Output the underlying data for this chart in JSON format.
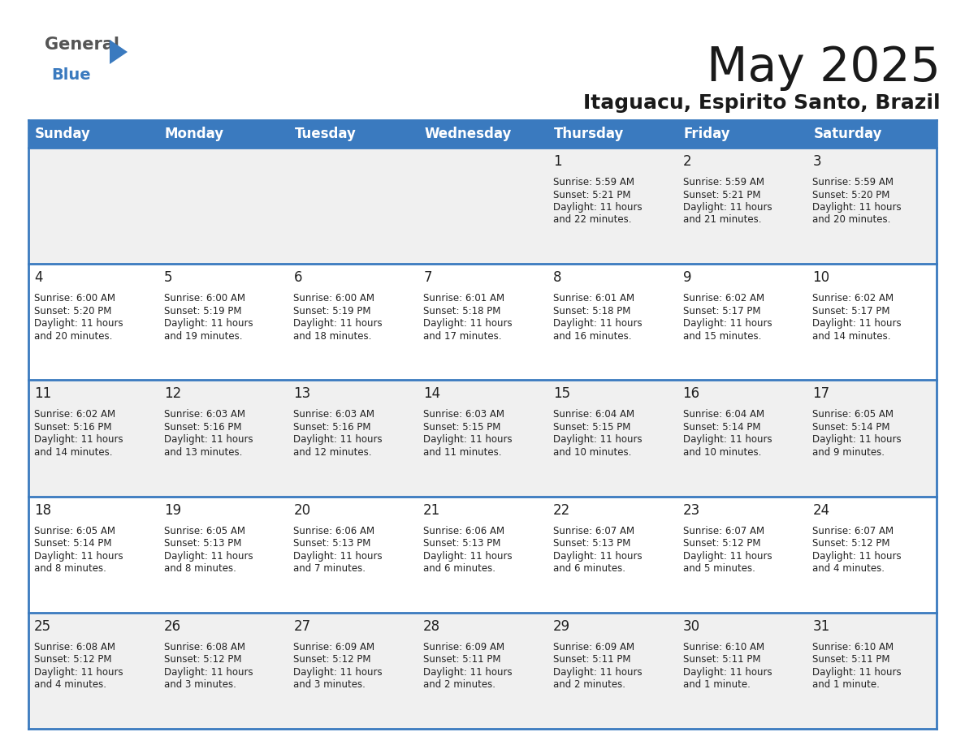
{
  "title": "May 2025",
  "subtitle": "Itaguacu, Espirito Santo, Brazil",
  "header_bg_color": "#3a7abf",
  "header_text_color": "#ffffff",
  "days_of_week": [
    "Sunday",
    "Monday",
    "Tuesday",
    "Wednesday",
    "Thursday",
    "Friday",
    "Saturday"
  ],
  "row_bg_colors": [
    "#f0f0f0",
    "#ffffff"
  ],
  "text_color": "#222222",
  "day_num_color": "#222222",
  "grid_line_color": "#3a7abf",
  "calendar_data": [
    [
      {
        "day": "",
        "sunrise": "",
        "sunset": "",
        "daylight": ""
      },
      {
        "day": "",
        "sunrise": "",
        "sunset": "",
        "daylight": ""
      },
      {
        "day": "",
        "sunrise": "",
        "sunset": "",
        "daylight": ""
      },
      {
        "day": "",
        "sunrise": "",
        "sunset": "",
        "daylight": ""
      },
      {
        "day": "1",
        "sunrise": "5:59 AM",
        "sunset": "5:21 PM",
        "daylight": "11 hours and 22 minutes."
      },
      {
        "day": "2",
        "sunrise": "5:59 AM",
        "sunset": "5:21 PM",
        "daylight": "11 hours and 21 minutes."
      },
      {
        "day": "3",
        "sunrise": "5:59 AM",
        "sunset": "5:20 PM",
        "daylight": "11 hours and 20 minutes."
      }
    ],
    [
      {
        "day": "4",
        "sunrise": "6:00 AM",
        "sunset": "5:20 PM",
        "daylight": "11 hours and 20 minutes."
      },
      {
        "day": "5",
        "sunrise": "6:00 AM",
        "sunset": "5:19 PM",
        "daylight": "11 hours and 19 minutes."
      },
      {
        "day": "6",
        "sunrise": "6:00 AM",
        "sunset": "5:19 PM",
        "daylight": "11 hours and 18 minutes."
      },
      {
        "day": "7",
        "sunrise": "6:01 AM",
        "sunset": "5:18 PM",
        "daylight": "11 hours and 17 minutes."
      },
      {
        "day": "8",
        "sunrise": "6:01 AM",
        "sunset": "5:18 PM",
        "daylight": "11 hours and 16 minutes."
      },
      {
        "day": "9",
        "sunrise": "6:02 AM",
        "sunset": "5:17 PM",
        "daylight": "11 hours and 15 minutes."
      },
      {
        "day": "10",
        "sunrise": "6:02 AM",
        "sunset": "5:17 PM",
        "daylight": "11 hours and 14 minutes."
      }
    ],
    [
      {
        "day": "11",
        "sunrise": "6:02 AM",
        "sunset": "5:16 PM",
        "daylight": "11 hours and 14 minutes."
      },
      {
        "day": "12",
        "sunrise": "6:03 AM",
        "sunset": "5:16 PM",
        "daylight": "11 hours and 13 minutes."
      },
      {
        "day": "13",
        "sunrise": "6:03 AM",
        "sunset": "5:16 PM",
        "daylight": "11 hours and 12 minutes."
      },
      {
        "day": "14",
        "sunrise": "6:03 AM",
        "sunset": "5:15 PM",
        "daylight": "11 hours and 11 minutes."
      },
      {
        "day": "15",
        "sunrise": "6:04 AM",
        "sunset": "5:15 PM",
        "daylight": "11 hours and 10 minutes."
      },
      {
        "day": "16",
        "sunrise": "6:04 AM",
        "sunset": "5:14 PM",
        "daylight": "11 hours and 10 minutes."
      },
      {
        "day": "17",
        "sunrise": "6:05 AM",
        "sunset": "5:14 PM",
        "daylight": "11 hours and 9 minutes."
      }
    ],
    [
      {
        "day": "18",
        "sunrise": "6:05 AM",
        "sunset": "5:14 PM",
        "daylight": "11 hours and 8 minutes."
      },
      {
        "day": "19",
        "sunrise": "6:05 AM",
        "sunset": "5:13 PM",
        "daylight": "11 hours and 8 minutes."
      },
      {
        "day": "20",
        "sunrise": "6:06 AM",
        "sunset": "5:13 PM",
        "daylight": "11 hours and 7 minutes."
      },
      {
        "day": "21",
        "sunrise": "6:06 AM",
        "sunset": "5:13 PM",
        "daylight": "11 hours and 6 minutes."
      },
      {
        "day": "22",
        "sunrise": "6:07 AM",
        "sunset": "5:13 PM",
        "daylight": "11 hours and 6 minutes."
      },
      {
        "day": "23",
        "sunrise": "6:07 AM",
        "sunset": "5:12 PM",
        "daylight": "11 hours and 5 minutes."
      },
      {
        "day": "24",
        "sunrise": "6:07 AM",
        "sunset": "5:12 PM",
        "daylight": "11 hours and 4 minutes."
      }
    ],
    [
      {
        "day": "25",
        "sunrise": "6:08 AM",
        "sunset": "5:12 PM",
        "daylight": "11 hours and 4 minutes."
      },
      {
        "day": "26",
        "sunrise": "6:08 AM",
        "sunset": "5:12 PM",
        "daylight": "11 hours and 3 minutes."
      },
      {
        "day": "27",
        "sunrise": "6:09 AM",
        "sunset": "5:12 PM",
        "daylight": "11 hours and 3 minutes."
      },
      {
        "day": "28",
        "sunrise": "6:09 AM",
        "sunset": "5:11 PM",
        "daylight": "11 hours and 2 minutes."
      },
      {
        "day": "29",
        "sunrise": "6:09 AM",
        "sunset": "5:11 PM",
        "daylight": "11 hours and 2 minutes."
      },
      {
        "day": "30",
        "sunrise": "6:10 AM",
        "sunset": "5:11 PM",
        "daylight": "11 hours and 1 minute."
      },
      {
        "day": "31",
        "sunrise": "6:10 AM",
        "sunset": "5:11 PM",
        "daylight": "11 hours and 1 minute."
      }
    ]
  ],
  "logo_general_color": "#555555",
  "logo_blue_color": "#3a7abf",
  "logo_triangle_color": "#3a7abf",
  "title_fontsize": 42,
  "subtitle_fontsize": 18,
  "header_fontsize": 12,
  "day_num_fontsize": 12,
  "cell_text_fontsize": 8.5
}
